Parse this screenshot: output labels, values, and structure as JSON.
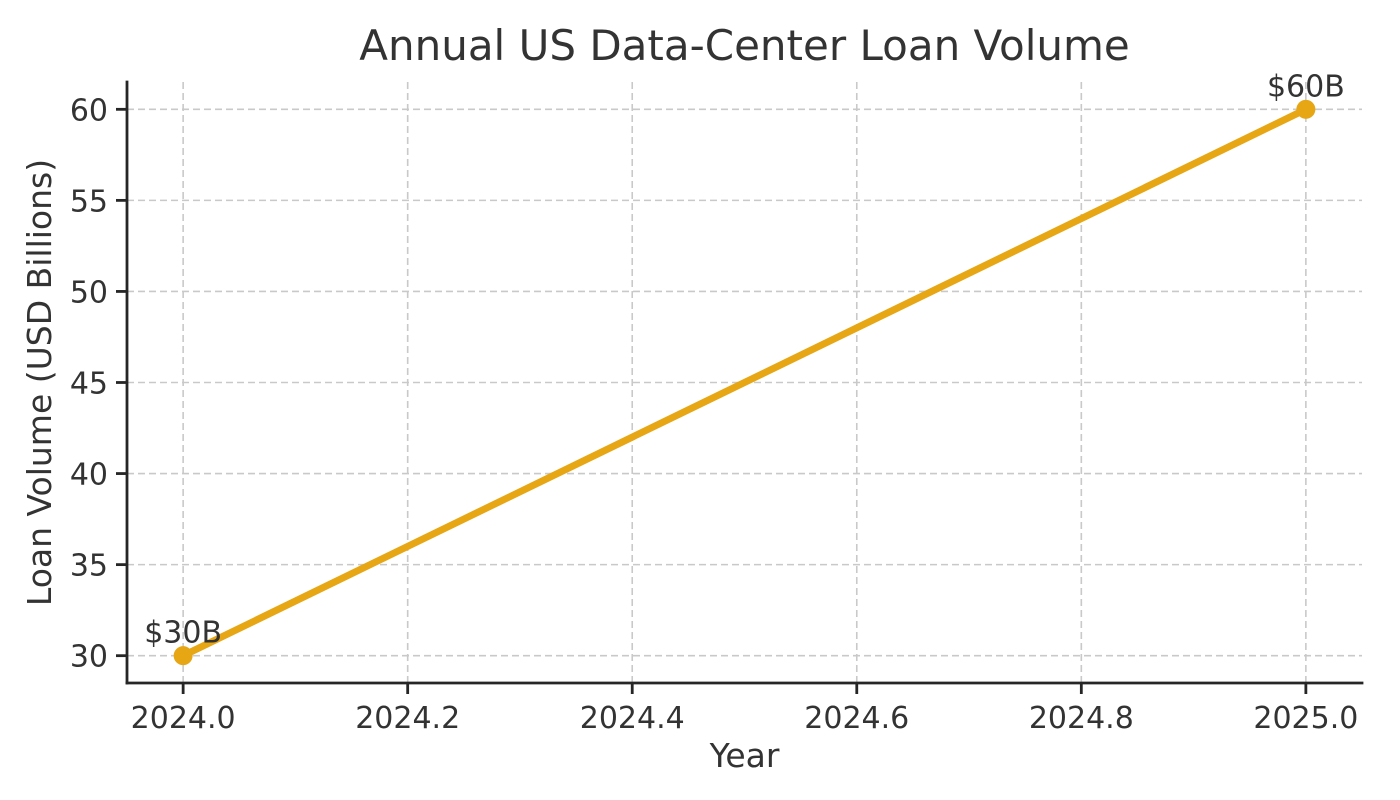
{
  "chart_data": {
    "type": "line",
    "title": "Annual US Data-Center Loan Volume",
    "xlabel": "Year",
    "ylabel": "Loan Volume (USD Billions)",
    "x": [
      2024,
      2025
    ],
    "series": [
      {
        "name": "Annual US data-center loan volume",
        "values": [
          30,
          60
        ],
        "point_labels": [
          "$30B",
          "$60B"
        ]
      }
    ],
    "xlim": [
      2023.95,
      2025.05
    ],
    "ylim": [
      28.5,
      61.5
    ],
    "xticks": [
      2024.0,
      2024.2,
      2024.4,
      2024.6,
      2024.8,
      2025.0
    ],
    "xtick_labels": [
      "2024.0",
      "2024.2",
      "2024.4",
      "2024.6",
      "2024.8",
      "2025.0"
    ],
    "yticks": [
      30,
      35,
      40,
      45,
      50,
      55,
      60
    ],
    "ytick_labels": [
      "30",
      "35",
      "40",
      "45",
      "50",
      "55",
      "60"
    ],
    "grid": true,
    "legend": "none",
    "colors": {
      "line": "#E7A614",
      "marker": "#E7A614",
      "grid": "#C9C9C9",
      "axis": "#262626",
      "text": "#333333",
      "background": "#FFFFFF"
    }
  }
}
